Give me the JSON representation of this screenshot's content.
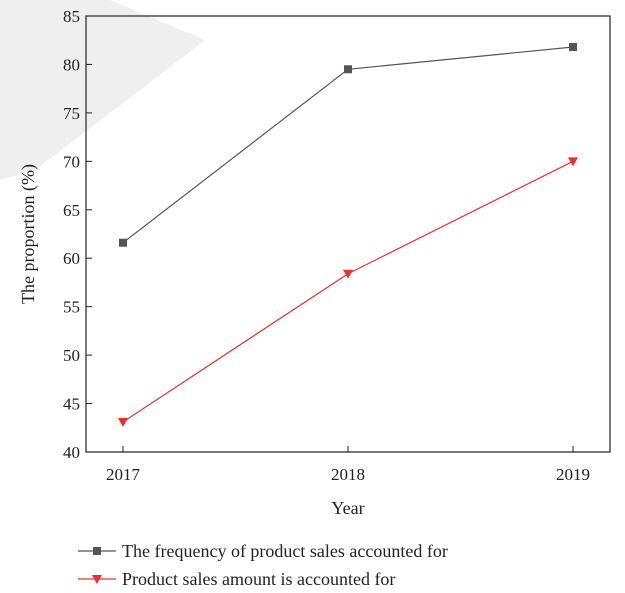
{
  "chart_data": {
    "type": "line",
    "title": "",
    "xlabel": "Year",
    "ylabel": "The proportion (%)",
    "categories": [
      "2017",
      "2018",
      "2019"
    ],
    "ylim": [
      40,
      85
    ],
    "yticks": [
      40,
      45,
      50,
      55,
      60,
      65,
      70,
      75,
      80,
      85
    ],
    "grid": false,
    "legend_position": "bottom",
    "series": [
      {
        "name": "The frequency of product sales accounted for",
        "values": [
          61.6,
          79.5,
          81.8
        ],
        "color": "#555555",
        "marker": "square"
      },
      {
        "name": "Product sales amount is accounted for",
        "values": [
          43.1,
          58.4,
          70.0
        ],
        "color": "#e8312a",
        "marker": "triangle-down"
      }
    ],
    "watermark_color": "#ececec"
  }
}
